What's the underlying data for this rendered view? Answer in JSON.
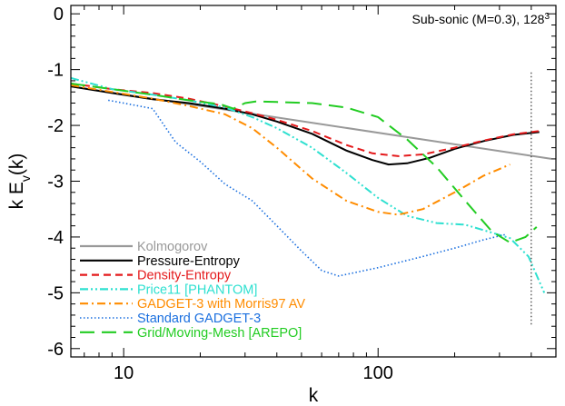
{
  "chart_data": {
    "type": "line",
    "title": "",
    "annotation": {
      "text": "Sub-sonic (M=0.3), 128",
      "superscript": "3"
    },
    "xlabel": "k",
    "ylabel": {
      "prefix": "k E",
      "subscript": "v",
      "suffix": "(k)"
    },
    "x_scale": "log",
    "xlim": [
      6.2,
      500
    ],
    "ylim": [
      -6.15,
      0.15
    ],
    "x_ticks": [
      {
        "value": 10,
        "label": "10"
      },
      {
        "value": 100,
        "label": "100"
      }
    ],
    "y_ticks": [
      {
        "value": 0,
        "label": "0"
      },
      {
        "value": -1,
        "label": "-1"
      },
      {
        "value": -2,
        "label": "-2"
      },
      {
        "value": -3,
        "label": "-3"
      },
      {
        "value": -4,
        "label": "-4"
      },
      {
        "value": -5,
        "label": "-5"
      },
      {
        "value": -6,
        "label": "-6"
      }
    ],
    "grid": false,
    "legend_position": "bottom-left",
    "series": [
      {
        "name": "Kolmogorov",
        "color": "#999999",
        "dash": "solid",
        "x": [
          6.2,
          480
        ],
        "y": [
          -1.3,
          -2.6
        ]
      },
      {
        "name": "Pressure-Entropy",
        "color": "#000000",
        "dash": "solid",
        "x": [
          6.2,
          9,
          13,
          18,
          25,
          32,
          40,
          55,
          75,
          95,
          110,
          130,
          160,
          200,
          260,
          340,
          430
        ],
        "y": [
          -1.3,
          -1.42,
          -1.53,
          -1.6,
          -1.7,
          -1.8,
          -1.93,
          -2.15,
          -2.45,
          -2.62,
          -2.7,
          -2.68,
          -2.58,
          -2.42,
          -2.28,
          -2.17,
          -2.12
        ]
      },
      {
        "name": "Density-Entropy",
        "color": "#e41a1c",
        "dash": "dash",
        "x": [
          6.2,
          9,
          13,
          18,
          25,
          32,
          40,
          55,
          75,
          95,
          120,
          150,
          200,
          260,
          340,
          430
        ],
        "y": [
          -1.25,
          -1.35,
          -1.42,
          -1.52,
          -1.66,
          -1.78,
          -1.9,
          -2.1,
          -2.35,
          -2.5,
          -2.55,
          -2.52,
          -2.4,
          -2.27,
          -2.16,
          -2.1
        ]
      },
      {
        "name": "Price11 [PHANTOM]",
        "color": "#2ee0d0",
        "dash": "dashdotdot",
        "x": [
          6.2,
          9,
          13,
          18,
          25,
          32,
          40,
          55,
          75,
          100,
          130,
          170,
          220,
          270,
          330,
          390,
          450
        ],
        "y": [
          -1.15,
          -1.35,
          -1.45,
          -1.55,
          -1.68,
          -1.85,
          -2.05,
          -2.4,
          -2.85,
          -3.3,
          -3.62,
          -3.75,
          -3.78,
          -3.9,
          -4.02,
          -4.35,
          -5.0
        ]
      },
      {
        "name": "GADGET-3 with Morris97 AV",
        "color": "#ff8c00",
        "dash": "dashdot",
        "x": [
          6.2,
          9,
          13,
          18,
          25,
          32,
          40,
          55,
          75,
          100,
          120,
          150,
          200,
          260,
          330
        ],
        "y": [
          -1.28,
          -1.4,
          -1.52,
          -1.65,
          -1.8,
          -2.05,
          -2.4,
          -2.95,
          -3.35,
          -3.55,
          -3.6,
          -3.5,
          -3.2,
          -2.9,
          -2.7
        ]
      },
      {
        "name": "Standard GADGET-3",
        "color": "#1a6fdf",
        "dash": "dot",
        "x": [
          8.7,
          10,
          13,
          16,
          20,
          25,
          32,
          40,
          50,
          60,
          70,
          100,
          150,
          200,
          260,
          320
        ],
        "y": [
          -1.55,
          -1.6,
          -1.7,
          -2.3,
          -2.65,
          -3.05,
          -3.35,
          -3.8,
          -4.25,
          -4.6,
          -4.7,
          -4.55,
          -4.35,
          -4.2,
          -4.05,
          -3.95
        ]
      },
      {
        "name": "Grid/Moving-Mesh [AREPO]",
        "color": "#22cc22",
        "dash": "longdash",
        "x": [
          6.2,
          9,
          13,
          18,
          24,
          27,
          30,
          33,
          40,
          55,
          75,
          100,
          130,
          170,
          220,
          280,
          330,
          380,
          420
        ],
        "y": [
          -1.25,
          -1.35,
          -1.45,
          -1.55,
          -1.62,
          -1.7,
          -1.6,
          -1.57,
          -1.58,
          -1.6,
          -1.68,
          -1.85,
          -2.25,
          -2.75,
          -3.35,
          -3.9,
          -4.1,
          -4.0,
          -3.82
        ]
      }
    ],
    "vertical_marker": {
      "x": 400,
      "y_range": [
        -1.05,
        -5.6
      ],
      "style": "dotted"
    }
  }
}
